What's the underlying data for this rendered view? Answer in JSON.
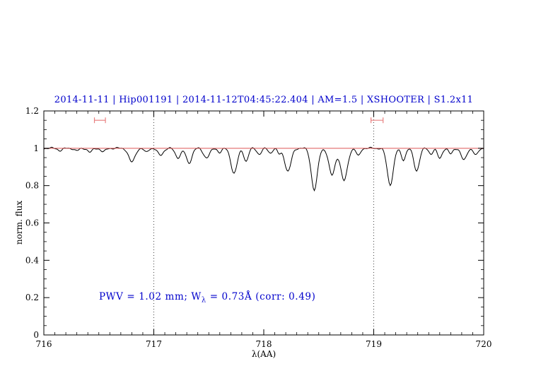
{
  "chart_data": {
    "type": "line",
    "title": "2014-11-11 | Hip001191 | 2014-11-12T04:45:22.404 | AM=1.5 | XSHOOTER | S1.2x11",
    "title_color": "#0000cc",
    "xlabel": "λ(AA)",
    "ylabel": "norm. flux",
    "xlim": [
      716,
      720
    ],
    "ylim": [
      0,
      1.2
    ],
    "xticks": [
      716,
      717,
      718,
      719,
      720
    ],
    "yticks": [
      0,
      0.2,
      0.4,
      0.6,
      0.8,
      1,
      1.2
    ],
    "x_minor_step": 0.1,
    "y_minor_step": 0.05,
    "grid": false,
    "vlines": [
      717,
      719
    ],
    "continuum": {
      "y": 1.0,
      "color": "#dd5555"
    },
    "marker_color": "#e88080",
    "pwv_markers": [
      {
        "center": 716.51,
        "halfwidth": 0.05,
        "y": 1.15
      },
      {
        "center": 719.03,
        "halfwidth": 0.055,
        "y": 1.15
      }
    ],
    "annotation": {
      "prefix": "PWV = 1.02 mm; W",
      "subscript": "λ",
      "suffix": " = 0.73Å (corr: 0.49)",
      "color": "#0000cc"
    },
    "spectrum": {
      "color": "#000000",
      "sample_step": 0.01,
      "noise": [
        [
          0.0035,
          52.0,
          0.0
        ],
        [
          0.0022,
          117.0,
          1.3
        ]
      ],
      "absorption_lines": [
        [
          716.15,
          0.012,
          0.02
        ],
        [
          716.3,
          0.014,
          0.02
        ],
        [
          716.42,
          0.022,
          0.02
        ],
        [
          716.54,
          0.02,
          0.02
        ],
        [
          716.8,
          0.075,
          0.028
        ],
        [
          716.93,
          0.022,
          0.018
        ],
        [
          717.06,
          0.038,
          0.025
        ],
        [
          717.22,
          0.05,
          0.025
        ],
        [
          717.32,
          0.08,
          0.025
        ],
        [
          717.48,
          0.05,
          0.028
        ],
        [
          717.6,
          0.022,
          0.018
        ],
        [
          717.73,
          0.135,
          0.028
        ],
        [
          717.84,
          0.07,
          0.02
        ],
        [
          717.96,
          0.032,
          0.02
        ],
        [
          718.06,
          0.025,
          0.018
        ],
        [
          718.14,
          0.03,
          0.016
        ],
        [
          718.22,
          0.125,
          0.028
        ],
        [
          718.46,
          0.225,
          0.028
        ],
        [
          718.62,
          0.145,
          0.028
        ],
        [
          718.73,
          0.175,
          0.03
        ],
        [
          718.86,
          0.042,
          0.018
        ],
        [
          719.15,
          0.195,
          0.028
        ],
        [
          719.27,
          0.062,
          0.02
        ],
        [
          719.39,
          0.12,
          0.025
        ],
        [
          719.52,
          0.03,
          0.018
        ],
        [
          719.6,
          0.055,
          0.02
        ],
        [
          719.7,
          0.032,
          0.018
        ],
        [
          719.82,
          0.065,
          0.024
        ],
        [
          719.93,
          0.038,
          0.02
        ]
      ]
    }
  }
}
